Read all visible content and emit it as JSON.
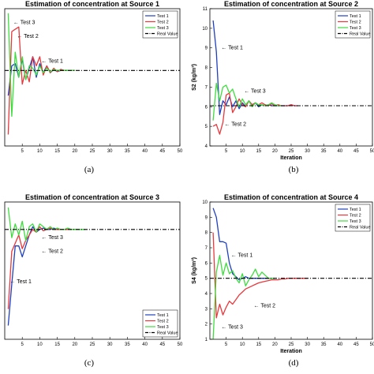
{
  "chart_data": [
    {
      "type": "line",
      "panel_id": "a",
      "title": "Estimation of concentration at Source 1",
      "caption": "(a)",
      "xlabel": "",
      "ylabel": "",
      "xlim": [
        0,
        50
      ],
      "ylim": [
        3,
        9
      ],
      "xticks": [
        5,
        10,
        15,
        20,
        25,
        30,
        35,
        40,
        45,
        50
      ],
      "yticks": [],
      "legend_position": "top-right",
      "real_value": 6.3,
      "series": [
        {
          "name": "Test 1",
          "color": "#1f3fbf",
          "x": [
            1,
            2,
            3,
            4,
            5,
            6,
            7,
            8,
            9,
            10,
            11,
            12,
            13,
            14,
            15,
            16,
            17,
            18,
            19,
            20
          ],
          "y": [
            5.2,
            6.5,
            6.6,
            6.0,
            6.8,
            5.9,
            6.4,
            6.9,
            6.0,
            6.6,
            6.2,
            6.5,
            6.2,
            6.35,
            6.25,
            6.3,
            6.3,
            6.3,
            6.3,
            6.3
          ]
        },
        {
          "name": "Test 2",
          "color": "#e8383d",
          "x": [
            1,
            2,
            3,
            4,
            5,
            6,
            7,
            8,
            9,
            10,
            11,
            12,
            13,
            14,
            15,
            16,
            17,
            18,
            19,
            20
          ],
          "y": [
            3.5,
            8.0,
            8.1,
            8.2,
            5.7,
            6.3,
            5.8,
            6.9,
            6.5,
            6.9,
            6.1,
            6.5,
            6.2,
            6.4,
            6.25,
            6.35,
            6.3,
            6.3,
            6.3,
            6.3
          ]
        },
        {
          "name": "Test 3",
          "color": "#3fdc3f",
          "x": [
            1,
            2,
            3,
            4,
            5,
            6,
            7,
            8,
            9,
            10,
            11,
            12,
            13,
            14,
            15,
            16,
            17,
            18,
            19,
            20
          ],
          "y": [
            8.8,
            4.3,
            7.1,
            6.0,
            6.9,
            5.9,
            6.5,
            6.4,
            6.1,
            6.5,
            6.2,
            6.4,
            6.25,
            6.35,
            6.3,
            6.3,
            6.3,
            6.3,
            6.3,
            6.3
          ]
        },
        {
          "name": "Real Value",
          "color": "#000000",
          "dashed": true,
          "x": [
            0,
            50
          ],
          "y": [
            6.3,
            6.3
          ]
        }
      ],
      "annotations": [
        {
          "text": "Test 3",
          "x": 2,
          "y": 8.4
        },
        {
          "text": "Test 2",
          "x": 3,
          "y": 7.8
        },
        {
          "text": "Test 1",
          "x": 10,
          "y": 6.7
        }
      ]
    },
    {
      "type": "line",
      "panel_id": "b",
      "title": "Estimation of concentration at Source 2",
      "caption": "(b)",
      "xlabel": "Iteration",
      "ylabel": "S2 (kg/m³)",
      "xlim": [
        0,
        50
      ],
      "ylim": [
        4,
        11
      ],
      "xticks": [
        5,
        10,
        15,
        20,
        25,
        30,
        35,
        40,
        45,
        50
      ],
      "yticks": [
        4,
        5,
        6,
        7,
        8,
        9,
        10,
        11
      ],
      "legend_position": "top-right",
      "real_value": 6.05,
      "series": [
        {
          "name": "Test 1",
          "color": "#1f3fbf",
          "x": [
            1,
            2,
            3,
            4,
            5,
            6,
            7,
            8,
            9,
            10,
            11,
            12,
            13,
            14,
            15,
            16,
            17,
            18,
            19,
            20,
            21,
            22,
            23,
            24,
            25,
            26,
            27
          ],
          "y": [
            10.4,
            8.8,
            5.6,
            6.3,
            6.1,
            6.5,
            6.0,
            6.3,
            5.9,
            6.2,
            6.0,
            6.3,
            6.1,
            6.2,
            6.0,
            6.1,
            6.05,
            6.1,
            6.05,
            6.05,
            6.05,
            6.05,
            6.05,
            6.05,
            6.1,
            6.05,
            6.05
          ]
        },
        {
          "name": "Test 2",
          "color": "#e8383d",
          "x": [
            1,
            2,
            3,
            4,
            5,
            6,
            7,
            8,
            9,
            10,
            11,
            12,
            13,
            14,
            15,
            16,
            17,
            18,
            19,
            20,
            21,
            22,
            23,
            24,
            25,
            26,
            27
          ],
          "y": [
            5.0,
            5.1,
            4.6,
            5.2,
            6.6,
            6.7,
            5.7,
            6.0,
            6.4,
            6.1,
            6.0,
            6.3,
            6.1,
            6.2,
            6.1,
            6.2,
            6.1,
            6.05,
            6.15,
            6.05,
            6.1,
            6.05,
            6.05,
            6.05,
            6.1,
            6.05,
            6.05
          ]
        },
        {
          "name": "Test 3",
          "color": "#3fdc3f",
          "x": [
            1,
            2,
            3,
            4,
            5,
            6,
            7,
            8,
            9,
            10,
            11,
            12,
            13,
            14,
            15,
            16,
            17,
            18,
            19,
            20,
            21,
            22
          ],
          "y": [
            5.3,
            7.2,
            6.3,
            7.0,
            7.1,
            6.7,
            6.9,
            6.4,
            6.0,
            6.4,
            6.1,
            6.3,
            6.0,
            6.2,
            6.1,
            6.1,
            6.05,
            6.1,
            6.2,
            6.1,
            6.05,
            6.05
          ]
        },
        {
          "name": "Real Value",
          "color": "#000000",
          "dashed": true,
          "x": [
            0,
            50
          ],
          "y": [
            6.05,
            6.05
          ]
        }
      ],
      "annotations": [
        {
          "text": "Test 1",
          "x": 3,
          "y": 9.0
        },
        {
          "text": "Test 3",
          "x": 10,
          "y": 6.8
        },
        {
          "text": "Test 2",
          "x": 4,
          "y": 5.1
        }
      ]
    },
    {
      "type": "line",
      "panel_id": "c",
      "title": "Estimation of concentration at Source 3",
      "caption": "(c)",
      "xlabel": "",
      "ylabel": "",
      "xlim": [
        0,
        50
      ],
      "ylim": [
        0,
        5
      ],
      "xticks": [
        5,
        10,
        15,
        20,
        25,
        30,
        35,
        40,
        45,
        50
      ],
      "yticks": [],
      "legend_position": "bottom-right",
      "real_value": 4.0,
      "series": [
        {
          "name": "Test 1",
          "color": "#1f3fbf",
          "x": [
            1,
            2,
            3,
            4,
            5,
            6,
            7,
            8,
            9,
            10,
            11,
            12,
            13,
            14,
            15,
            16,
            17,
            18,
            19,
            20,
            21
          ],
          "y": [
            0.5,
            2.0,
            3.4,
            3.4,
            3.0,
            3.4,
            3.8,
            4.1,
            3.9,
            4.0,
            4.05,
            4.0,
            4.0,
            4.05,
            4.0,
            4.0,
            4.0,
            4.0,
            4.0,
            4.0,
            4.0
          ]
        },
        {
          "name": "Test 2",
          "color": "#e8383d",
          "x": [
            1,
            2,
            3,
            4,
            5,
            6,
            7,
            8,
            9,
            10,
            11,
            12,
            13,
            14,
            15,
            16,
            17,
            18,
            19,
            20,
            21
          ],
          "y": [
            1.1,
            3.2,
            3.5,
            3.8,
            3.3,
            3.6,
            3.8,
            4.0,
            3.9,
            4.1,
            3.95,
            4.0,
            4.05,
            4.0,
            4.0,
            4.0,
            4.0,
            4.0,
            4.0,
            4.0,
            4.0
          ]
        },
        {
          "name": "Test 3",
          "color": "#3fdc3f",
          "x": [
            1,
            2,
            3,
            4,
            5,
            6,
            7,
            8,
            9,
            10,
            11,
            12,
            13,
            14,
            15,
            16,
            17,
            18,
            19,
            20,
            21,
            22,
            23
          ],
          "y": [
            4.8,
            3.7,
            4.2,
            3.8,
            4.3,
            3.6,
            4.1,
            4.2,
            3.9,
            4.2,
            4.1,
            4.0,
            4.1,
            4.0,
            4.05,
            4.0,
            4.0,
            4.05,
            4.0,
            4.0,
            4.0,
            4.0,
            4.0
          ]
        },
        {
          "name": "Real Value",
          "color": "#000000",
          "dashed": true,
          "x": [
            0,
            50
          ],
          "y": [
            4.0,
            4.0
          ]
        }
      ],
      "annotations": [
        {
          "text": "Test 3",
          "x": 10,
          "y": 3.7
        },
        {
          "text": "Test 2",
          "x": 10,
          "y": 3.2
        },
        {
          "text": "Test 1",
          "x": 1,
          "y": 2.1
        }
      ]
    },
    {
      "type": "line",
      "panel_id": "d",
      "title": "Estimation of concentration at Source 4",
      "caption": "(d)",
      "xlabel": "Iteration",
      "ylabel": "S4 (kg/m³)",
      "xlim": [
        0,
        50
      ],
      "ylim": [
        1,
        10
      ],
      "xticks": [
        5,
        10,
        15,
        20,
        25,
        30,
        35,
        40,
        45,
        50
      ],
      "yticks": [
        1,
        2,
        3,
        4,
        5,
        6,
        7,
        8,
        9,
        10
      ],
      "legend_position": "top-right",
      "real_value": 5.0,
      "series": [
        {
          "name": "Test 1",
          "color": "#1f3fbf",
          "x": [
            1,
            2,
            3,
            4,
            5,
            6,
            7,
            8,
            9,
            10,
            11,
            12,
            13,
            14,
            15,
            16,
            17,
            18,
            19,
            20
          ],
          "y": [
            9.6,
            9.0,
            7.4,
            7.4,
            7.3,
            6.0,
            5.3,
            5.1,
            4.9,
            5.0,
            5.1,
            5.0,
            5.0,
            5.0,
            5.0,
            5.0,
            5.0,
            5.0,
            5.0,
            5.0
          ]
        },
        {
          "name": "Test 2",
          "color": "#e8383d",
          "x": [
            1,
            2,
            3,
            4,
            5,
            6,
            7,
            8,
            9,
            10,
            11,
            12,
            13,
            14,
            15,
            16,
            17,
            18,
            19,
            20,
            21,
            22,
            23,
            24,
            25,
            26,
            27,
            28,
            29,
            30
          ],
          "y": [
            8.0,
            2.4,
            3.3,
            2.6,
            3.1,
            3.5,
            3.3,
            3.6,
            3.9,
            4.1,
            4.3,
            4.4,
            4.5,
            4.6,
            4.7,
            4.75,
            4.8,
            4.85,
            4.9,
            4.9,
            4.9,
            4.95,
            4.95,
            5.0,
            5.0,
            5.0,
            5.0,
            5.0,
            5.0,
            5.0
          ]
        },
        {
          "name": "Test 3",
          "color": "#3fdc3f",
          "x": [
            1,
            2,
            3,
            4,
            5,
            6,
            7,
            8,
            9,
            10,
            11,
            12,
            13,
            14,
            15,
            16,
            17,
            18,
            19,
            20
          ],
          "y": [
            1.0,
            5.4,
            6.5,
            5.2,
            6.0,
            5.3,
            5.5,
            5.0,
            4.7,
            5.3,
            4.5,
            4.9,
            5.2,
            5.6,
            5.1,
            5.4,
            5.2,
            5.0,
            5.0,
            5.0
          ]
        },
        {
          "name": "Real Value",
          "color": "#000000",
          "dashed": true,
          "x": [
            0,
            50
          ],
          "y": [
            5.0,
            5.0
          ]
        }
      ],
      "annotations": [
        {
          "text": "Test 1",
          "x": 6,
          "y": 6.5
        },
        {
          "text": "Test 2",
          "x": 13,
          "y": 3.2
        },
        {
          "text": "Test 3",
          "x": 3,
          "y": 1.8
        }
      ]
    }
  ]
}
